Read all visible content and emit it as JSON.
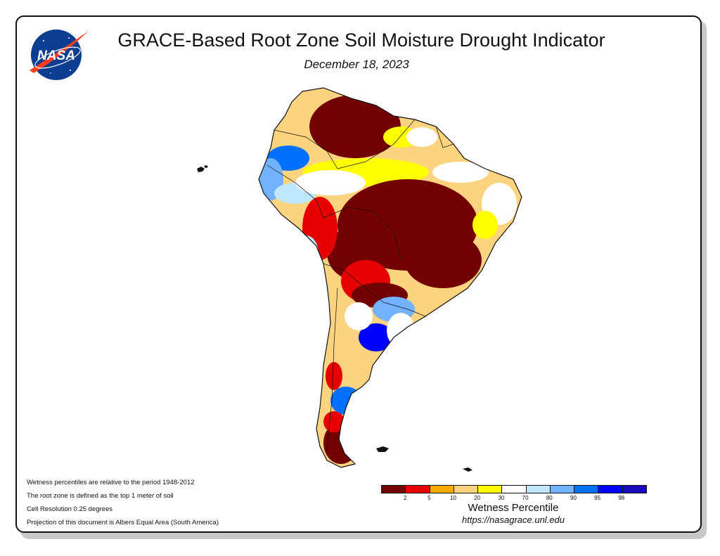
{
  "header": {
    "title": "GRACE-Based Root Zone Soil Moisture Drought Indicator",
    "date": "December 18, 2023",
    "logo_text": "NASA"
  },
  "notes": [
    "Wetness percentiles are relative to the period 1948-2012",
    "The root zone is defined as the top 1 meter of soil",
    "Cell Resolution 0.25 degrees",
    "Projection of this document is Albers Equal Area (South America)"
  ],
  "legend": {
    "title": "Wetness Percentile",
    "url": "https://nasagrace.unl.edu",
    "colors": [
      "#730000",
      "#e60000",
      "#ffaa00",
      "#fcd37f",
      "#ffff00",
      "#ffffff",
      "#bee8ff",
      "#73b2ff",
      "#0070ff",
      "#0000ff",
      "#1b0ab9"
    ],
    "tick_labels": [
      "2",
      "5",
      "10",
      "20",
      "30",
      "70",
      "80",
      "90",
      "95",
      "98"
    ]
  },
  "map": {
    "region": "South America",
    "palette": {
      "extreme_dry": "#730000",
      "very_dry": "#e60000",
      "dry": "#ffaa00",
      "moderately_dry": "#fcd37f",
      "slightly_dry": "#ffff00",
      "normal": "#ffffff",
      "slightly_wet": "#bee8ff",
      "wet": "#73b2ff",
      "very_wet": "#0070ff",
      "extreme_wet": "#0000ff"
    }
  }
}
